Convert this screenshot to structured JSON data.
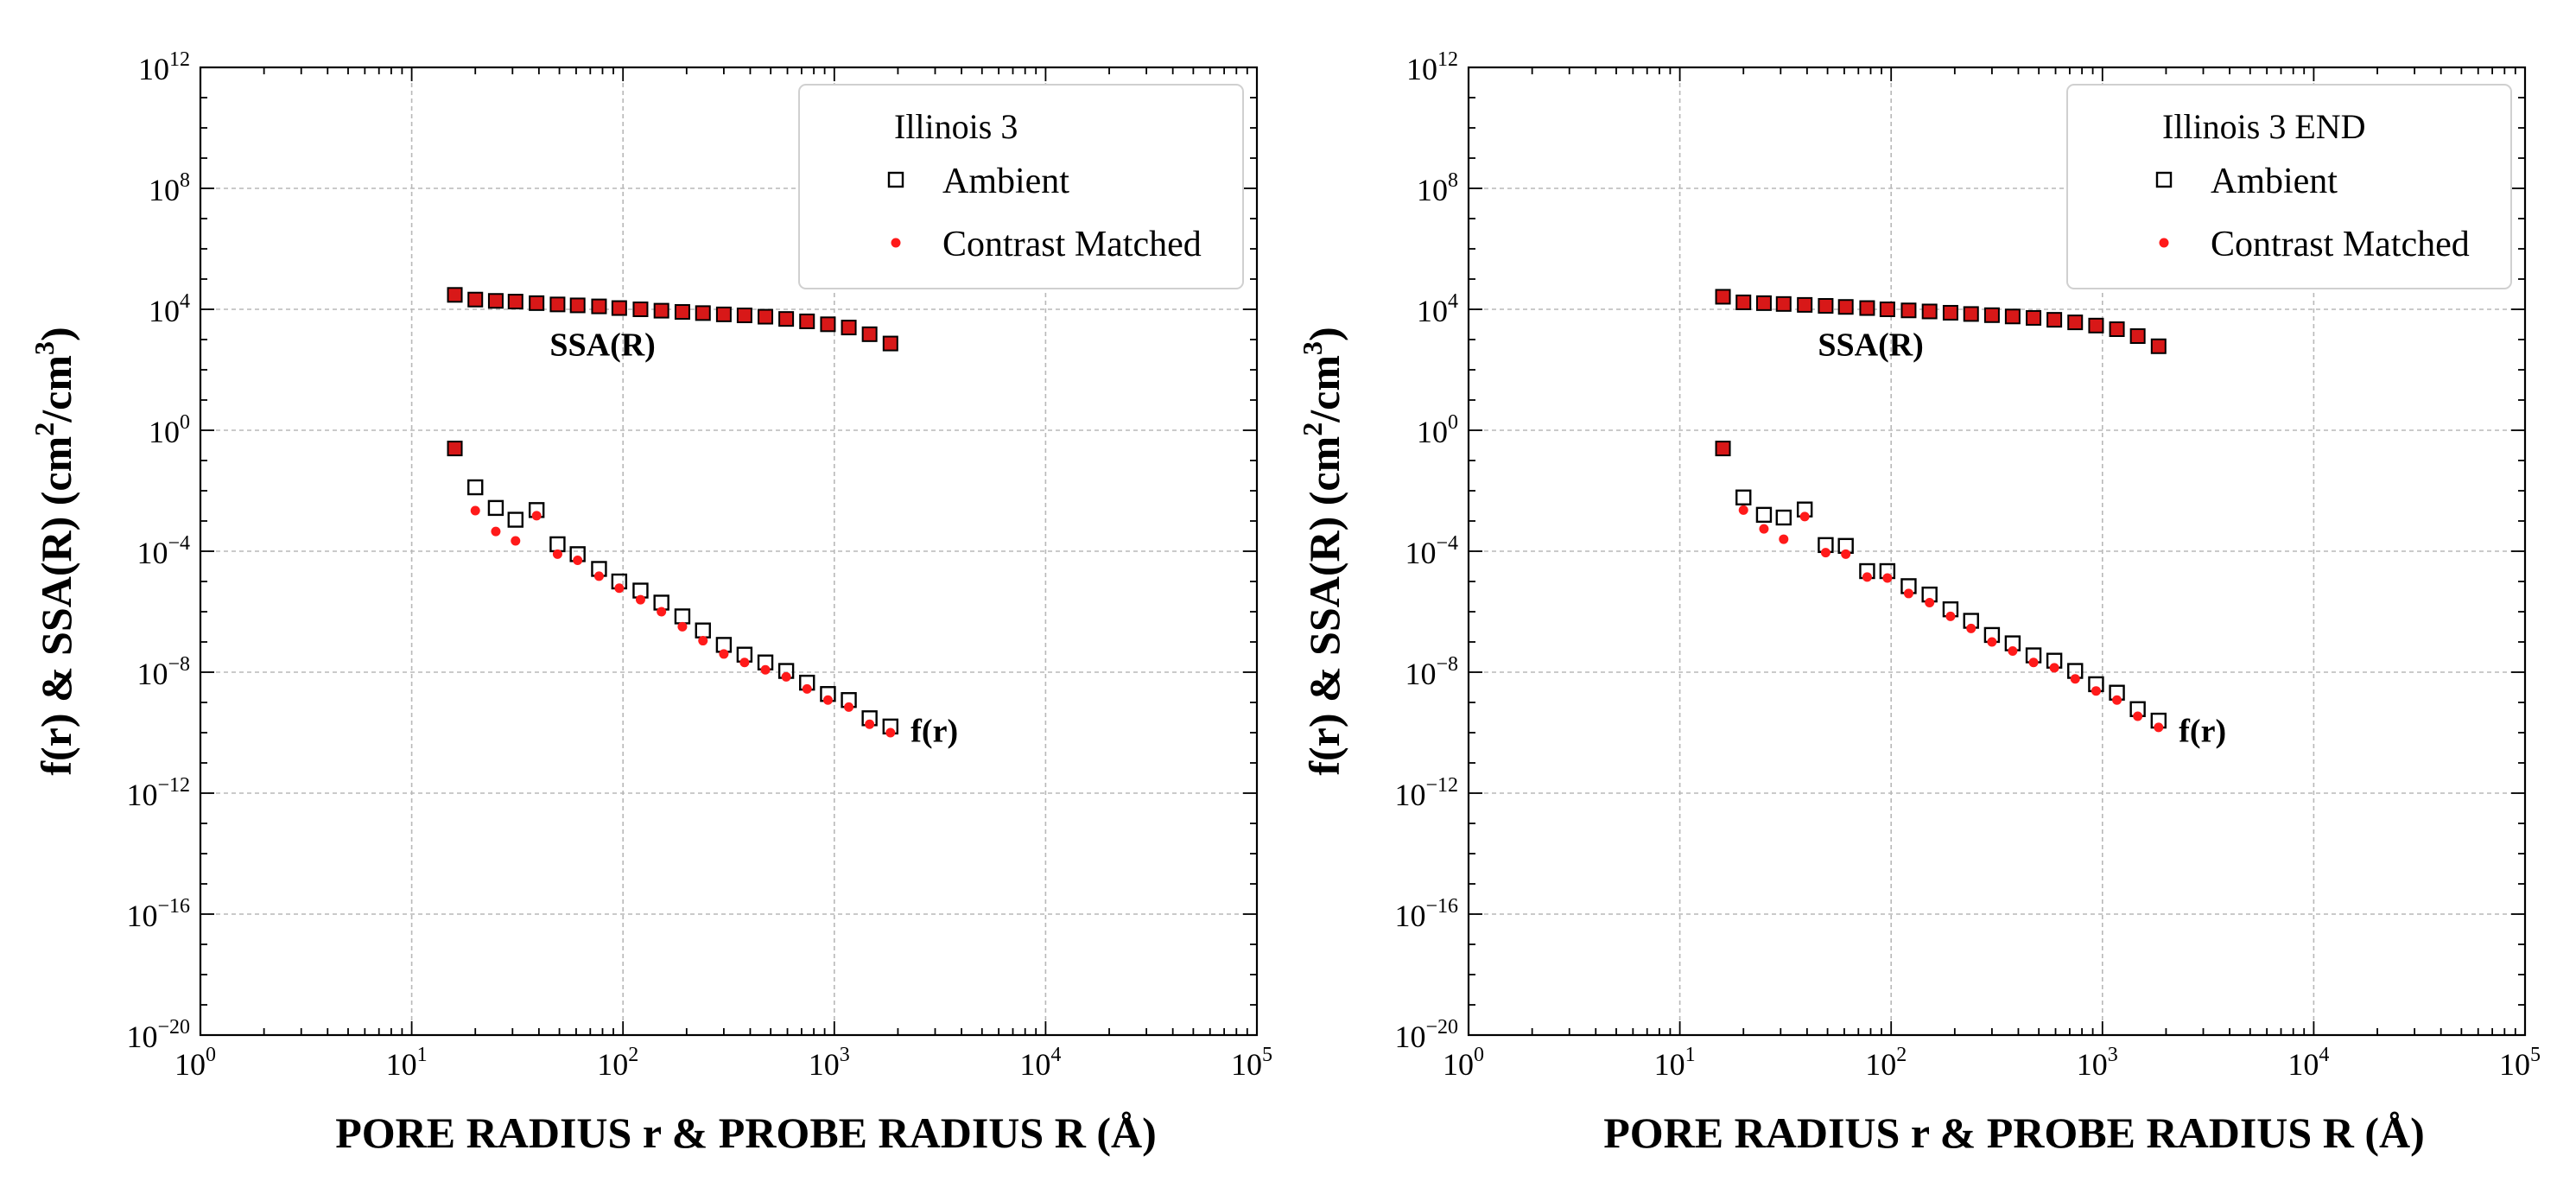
{
  "chart_data": [
    {
      "type": "scatter",
      "scale": "log-log",
      "legend_title": "Illinois 3",
      "legend_position": "top-right",
      "xlabel": "PORE RADIUS r & PROBE RADIUS R (Å)",
      "ylabel_base": "f(r) & SSA(R) (cm",
      "ylabel_exp1": "2",
      "ylabel_mid": "/cm",
      "ylabel_exp2": "3",
      "ylabel_end": ")",
      "xlim": [
        1,
        100000
      ],
      "ylim": [
        1e-20,
        1000000000000.0
      ],
      "x_ticks": [
        {
          "base": "10",
          "exp": "0",
          "value": 1
        },
        {
          "base": "10",
          "exp": "1",
          "value": 10
        },
        {
          "base": "10",
          "exp": "2",
          "value": 100
        },
        {
          "base": "10",
          "exp": "3",
          "value": 1000
        },
        {
          "base": "10",
          "exp": "4",
          "value": 10000
        },
        {
          "base": "10",
          "exp": "5",
          "value": 100000
        }
      ],
      "y_ticks": [
        {
          "base": "10",
          "exp": "12",
          "value": 1000000000000.0
        },
        {
          "base": "10",
          "exp": "8",
          "value": 100000000.0
        },
        {
          "base": "10",
          "exp": "4",
          "value": 10000.0
        },
        {
          "base": "10",
          "exp": "0",
          "value": 1
        },
        {
          "base": "10",
          "exp": "−4",
          "value": 0.0001
        },
        {
          "base": "10",
          "exp": "−8",
          "value": 1e-08
        },
        {
          "base": "10",
          "exp": "−12",
          "value": 1e-12
        },
        {
          "base": "10",
          "exp": "−16",
          "value": 1e-16
        },
        {
          "base": "10",
          "exp": "−20",
          "value": 1e-20
        }
      ],
      "grid": true,
      "annotations": [
        {
          "text": "SSA(R)",
          "x": 45,
          "y": 300
        },
        {
          "text": "f(r)",
          "x": 2300,
          "y": 5e-11
        }
      ],
      "series": [
        {
          "name": "Ambient",
          "group": "SSA",
          "x": [
            16,
            20,
            25,
            31,
            39,
            49,
            61,
            77,
            96,
            121,
            152,
            191,
            239,
            300,
            376,
            472,
            592,
            743,
            933,
            1171,
            1469,
            1844
          ],
          "y": [
            30000,
            21000,
            19000,
            18000,
            16000,
            14500,
            13500,
            12500,
            11000,
            10000,
            9000,
            8200,
            7500,
            6800,
            6300,
            5700,
            4800,
            4000,
            3200,
            2500,
            1500,
            740
          ]
        },
        {
          "name": "Ambient",
          "group": "f",
          "x": [
            16,
            20,
            25,
            31,
            39,
            49,
            61,
            77,
            96,
            121,
            152,
            191,
            239,
            300,
            376,
            472,
            592,
            743,
            933,
            1171,
            1469,
            1844
          ],
          "y": [
            0.25,
            0.013,
            0.0027,
            0.0011,
            0.0023,
            0.00017,
            8e-05,
            2.6e-05,
            1e-05,
            5e-06,
            2e-06,
            7e-07,
            2.4e-07,
            8e-08,
            3.8e-08,
            2.1e-08,
            1.1e-08,
            4.5e-09,
            1.9e-09,
            1.2e-09,
            3e-10,
            1.6e-10
          ]
        },
        {
          "name": "Contrast Matched",
          "group": "SSA",
          "x": [
            16,
            20,
            25,
            31,
            39,
            49,
            61,
            77,
            96,
            121,
            152,
            191,
            239,
            300,
            376,
            472,
            592,
            743,
            933,
            1171,
            1469,
            1844
          ],
          "y": [
            28000,
            19000,
            17500,
            16000,
            15000,
            13500,
            12500,
            11500,
            10200,
            9300,
            8300,
            7600,
            7000,
            6300,
            5800,
            5300,
            4400,
            3600,
            2900,
            2200,
            1300,
            650
          ]
        },
        {
          "name": "Contrast Matched",
          "group": "f",
          "x": [
            16,
            20,
            25,
            31,
            39,
            49,
            61,
            77,
            96,
            121,
            152,
            191,
            239,
            300,
            376,
            472,
            592,
            743,
            933,
            1171,
            1469,
            1844
          ],
          "y": [
            0.23,
            0.0022,
            0.00045,
            0.00022,
            0.0015,
            8e-05,
            5e-05,
            1.5e-05,
            6e-06,
            2.5e-06,
            1e-06,
            3.2e-07,
            1.1e-07,
            4e-08,
            2.1e-08,
            1.2e-08,
            7e-09,
            2.8e-09,
            1.2e-09,
            7e-10,
            1.9e-10,
            1e-10
          ]
        }
      ]
    },
    {
      "type": "scatter",
      "scale": "log-log",
      "legend_title": "Illinois 3 END",
      "legend_position": "top-right",
      "xlabel": "PORE RADIUS r & PROBE RADIUS R (Å)",
      "ylabel_base": "f(r) & SSA(R) (cm",
      "ylabel_exp1": "2",
      "ylabel_mid": "/cm",
      "ylabel_exp2": "3",
      "ylabel_end": ")",
      "xlim": [
        1,
        100000
      ],
      "ylim": [
        1e-20,
        1000000000000.0
      ],
      "x_ticks": [
        {
          "base": "10",
          "exp": "0",
          "value": 1
        },
        {
          "base": "10",
          "exp": "1",
          "value": 10
        },
        {
          "base": "10",
          "exp": "2",
          "value": 100
        },
        {
          "base": "10",
          "exp": "3",
          "value": 1000
        },
        {
          "base": "10",
          "exp": "4",
          "value": 10000
        },
        {
          "base": "10",
          "exp": "5",
          "value": 100000
        }
      ],
      "y_ticks": [
        {
          "base": "10",
          "exp": "12",
          "value": 1000000000000.0
        },
        {
          "base": "10",
          "exp": "8",
          "value": 100000000.0
        },
        {
          "base": "10",
          "exp": "4",
          "value": 10000.0
        },
        {
          "base": "10",
          "exp": "0",
          "value": 1
        },
        {
          "base": "10",
          "exp": "−4",
          "value": 0.0001
        },
        {
          "base": "10",
          "exp": "−8",
          "value": 1e-08
        },
        {
          "base": "10",
          "exp": "−12",
          "value": 1e-12
        },
        {
          "base": "10",
          "exp": "−16",
          "value": 1e-16
        },
        {
          "base": "10",
          "exp": "−20",
          "value": 1e-20
        }
      ],
      "grid": true,
      "annotations": [
        {
          "text": "SSA(R)",
          "x": 45,
          "y": 300
        },
        {
          "text": "f(r)",
          "x": 2300,
          "y": 5e-11
        }
      ],
      "series": [
        {
          "name": "Ambient",
          "group": "SSA",
          "x": [
            16,
            20,
            25,
            31,
            39,
            49,
            61,
            77,
            96,
            121,
            152,
            191,
            239,
            300,
            376,
            472,
            592,
            743,
            933,
            1171,
            1469,
            1844
          ],
          "y": [
            26000,
            17000,
            16000,
            15000,
            14000,
            13000,
            12000,
            11000,
            10000,
            9200,
            8500,
            7700,
            7000,
            6400,
            5800,
            5200,
            4500,
            3700,
            2900,
            2200,
            1300,
            600
          ]
        },
        {
          "name": "Ambient",
          "group": "f",
          "x": [
            16,
            20,
            25,
            31,
            39,
            49,
            61,
            77,
            96,
            121,
            152,
            191,
            239,
            300,
            376,
            472,
            592,
            743,
            933,
            1171,
            1469,
            1844
          ],
          "y": [
            0.25,
            0.006,
            0.0016,
            0.0013,
            0.0024,
            0.00016,
            0.00015,
            2.2e-05,
            2.2e-05,
            7e-06,
            3.7e-06,
            1.2e-06,
            5e-07,
            1.7e-07,
            9e-08,
            3.6e-08,
            2.4e-08,
            1.1e-08,
            4e-09,
            2.1e-09,
            6e-10,
            2.5e-10
          ]
        },
        {
          "name": "Contrast Matched",
          "group": "SSA",
          "x": [
            16,
            20,
            25,
            31,
            39,
            49,
            61,
            77,
            96,
            121,
            152,
            191,
            239,
            300,
            376,
            472,
            592,
            743,
            933,
            1171,
            1469,
            1844
          ],
          "y": [
            24000,
            15500,
            14500,
            13500,
            13000,
            12000,
            11000,
            10200,
            9300,
            8500,
            7800,
            7100,
            6500,
            5900,
            5300,
            4800,
            4100,
            3400,
            2700,
            2000,
            1200,
            550
          ]
        },
        {
          "name": "Contrast Matched",
          "group": "f",
          "x": [
            16,
            20,
            25,
            31,
            39,
            49,
            61,
            77,
            96,
            121,
            152,
            191,
            239,
            300,
            376,
            472,
            592,
            743,
            933,
            1171,
            1469,
            1844
          ],
          "y": [
            0.23,
            0.0023,
            0.00055,
            0.00025,
            0.0014,
            9e-05,
            8e-05,
            1.4e-05,
            1.3e-05,
            4e-06,
            2e-06,
            7e-07,
            2.8e-07,
            1e-07,
            5e-08,
            2.1e-08,
            1.4e-08,
            6e-09,
            2.4e-09,
            1.2e-09,
            3.5e-10,
            1.5e-10
          ]
        }
      ]
    }
  ]
}
